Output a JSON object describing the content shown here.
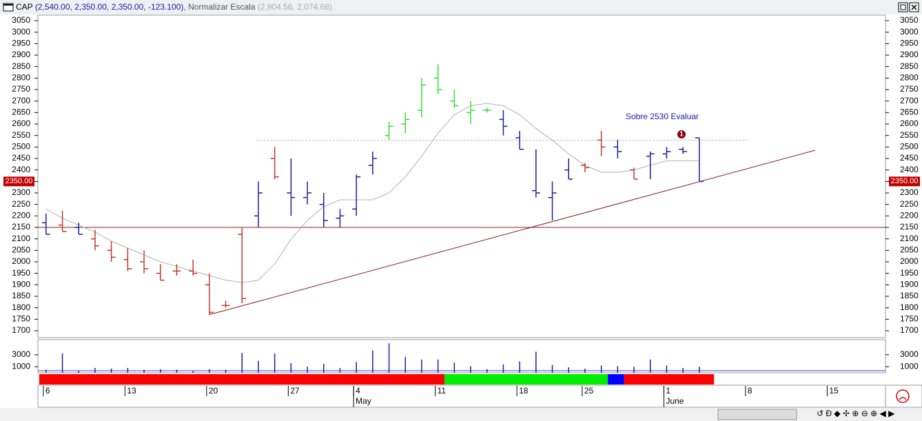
{
  "header": {
    "symbol": "CAP",
    "quote": "(2,540.00, 2,350.00, 2,350.00, -123.100)",
    "separator": ",",
    "indicator": "Normalizar Escala",
    "indicator_values": "(2,904.56, 2,074.68)"
  },
  "chart_data": [
    {
      "type": "ohlc",
      "open": [
        2170,
        2160,
        2150,
        2100,
        2050,
        2010,
        2000,
        1950,
        1960,
        1960,
        1900,
        1810,
        2120,
        2200,
        2450,
        2300,
        2280,
        2250,
        2190,
        2230,
        2420,
        2550,
        2600,
        2660,
        2800,
        2700,
        2650,
        2660,
        2620,
        2540,
        2310,
        2280,
        2400,
        2420,
        2530,
        2500,
        2400,
        2460,
        2470,
        2490,
        2540
      ],
      "high": [
        2210,
        2222,
        2170,
        2140,
        2090,
        2060,
        2050,
        1990,
        1990,
        2010,
        1950,
        1830,
        2150,
        2350,
        2500,
        2450,
        2350,
        2300,
        2230,
        2380,
        2480,
        2610,
        2650,
        2800,
        2860,
        2750,
        2700,
        2670,
        2660,
        2570,
        2490,
        2350,
        2450,
        2430,
        2570,
        2530,
        2410,
        2480,
        2500,
        2500,
        2540
      ],
      "low": [
        2120,
        2132,
        2120,
        2050,
        2000,
        1960,
        1950,
        1920,
        1940,
        1940,
        1770,
        1800,
        1820,
        2150,
        2360,
        2200,
        2250,
        2150,
        2150,
        2200,
        2380,
        2530,
        2560,
        2630,
        2730,
        2670,
        2600,
        2650,
        2550,
        2490,
        2280,
        2180,
        2360,
        2390,
        2460,
        2450,
        2360,
        2360,
        2450,
        2470,
        2350
      ],
      "close": [
        2120,
        2132,
        2120,
        2070,
        2020,
        1970,
        1970,
        1920,
        1960,
        1950,
        1780,
        1810,
        1840,
        2300,
        2370,
        2280,
        2300,
        2180,
        2200,
        2370,
        2450,
        2590,
        2620,
        2770,
        2750,
        2680,
        2660,
        2660,
        2590,
        2490,
        2300,
        2300,
        2360,
        2410,
        2500,
        2480,
        2360,
        2470,
        2480,
        2480,
        2350
      ],
      "colors": [
        "#1c1c9c",
        "#c0392b",
        "#1c1c9c",
        "#c0392b",
        "#c0392b",
        "#c0392b",
        "#c0392b",
        "#c0392b",
        "#c0392b",
        "#c0392b",
        "#c0392b",
        "#c0392b",
        "#c0392b",
        "#1c1c9c",
        "#c0392b",
        "#1c1c9c",
        "#1c1c9c",
        "#1c1c9c",
        "#1c1c9c",
        "#1c1c9c",
        "#1c1c9c",
        "#33dd33",
        "#33dd33",
        "#33dd33",
        "#33dd33",
        "#33dd33",
        "#33dd33",
        "#33dd33",
        "#1c1c9c",
        "#1c1c9c",
        "#1c1c9c",
        "#1c1c9c",
        "#1c1c9c",
        "#c0392b",
        "#c0392b",
        "#1c1c9c",
        "#c0392b",
        "#1c1c9c",
        "#1c1c9c",
        "#1c1c9c",
        "#1c1c9c"
      ],
      "moving_average": {
        "color": "#b0b0b0",
        "values": [
          2230,
          2190,
          2160,
          2130,
          2090,
          2060,
          2030,
          2000,
          1980,
          1960,
          1940,
          1920,
          1910,
          1920,
          1990,
          2100,
          2180,
          2240,
          2270,
          2270,
          2270,
          2300,
          2370,
          2460,
          2560,
          2640,
          2680,
          2690,
          2680,
          2640,
          2580,
          2530,
          2470,
          2420,
          2390,
          2390,
          2400,
          2420,
          2440,
          2440,
          2440
        ]
      },
      "hline": {
        "value": 2150,
        "color": "#8b1a1a"
      },
      "level": {
        "value": 2530,
        "x": [
          12.9,
          42.95
        ],
        "color": "#b8b8b8"
      },
      "trendline": {
        "x": [
          10,
          47.1
        ],
        "y": [
          1770,
          2486
        ],
        "color": "#8b1a1a"
      },
      "price_label": {
        "value": 2350,
        "label": "2350.00"
      },
      "annotation": "Sobre 2530 Evaluar",
      "marker": "1",
      "xlim": [
        -0.5,
        51.4
      ],
      "ylim": [
        1670,
        3074
      ],
      "yticks": [
        1700,
        1750,
        1800,
        1850,
        1900,
        1950,
        2000,
        2050,
        2100,
        2150,
        2200,
        2250,
        2300,
        2350,
        2400,
        2450,
        2500,
        2550,
        2600,
        2650,
        2700,
        2750,
        2800,
        2850,
        2900,
        2950,
        3000,
        3050
      ]
    },
    {
      "type": "bar",
      "values": [
        500,
        3200,
        300,
        800,
        700,
        800,
        500,
        600,
        500,
        300,
        600,
        500,
        3300,
        2000,
        3200,
        1600,
        1000,
        1500,
        800,
        1800,
        3700,
        4900,
        2600,
        2200,
        2200,
        1700,
        1100,
        600,
        1400,
        1900,
        3500,
        1300,
        900,
        700,
        1200,
        1100,
        1000,
        2200,
        1200,
        800,
        1000
      ],
      "color": "#1c1c9c",
      "ylim": [
        0,
        5500
      ],
      "yticks": [
        1000,
        3000
      ]
    },
    {
      "type": "regime",
      "bands": [
        {
          "color": "#ff0000",
          "x": [
            -0.42,
            24.4
          ]
        },
        {
          "color": "#00ee00",
          "x": [
            24.4,
            34.4
          ]
        },
        {
          "color": "#0000ff",
          "x": [
            34.4,
            35.4
          ]
        },
        {
          "color": "#ff0000",
          "x": [
            35.4,
            40.9
          ]
        }
      ]
    },
    {
      "type": "date_axis",
      "xticks": [
        {
          "value": 0,
          "label": "6"
        },
        {
          "value": 5,
          "label": "13"
        },
        {
          "value": 10,
          "label": "20"
        },
        {
          "value": 15,
          "label": "27"
        },
        {
          "value": 19,
          "label": "4"
        },
        {
          "value": 24,
          "label": "11"
        },
        {
          "value": 29,
          "label": "18"
        },
        {
          "value": 33,
          "label": "25"
        },
        {
          "value": 38,
          "label": "1"
        },
        {
          "value": 43,
          "label": "8"
        },
        {
          "value": 48,
          "label": "15"
        }
      ],
      "months": [
        {
          "value": 19,
          "label": "May"
        },
        {
          "value": 38,
          "label": "June"
        }
      ]
    }
  ]
}
